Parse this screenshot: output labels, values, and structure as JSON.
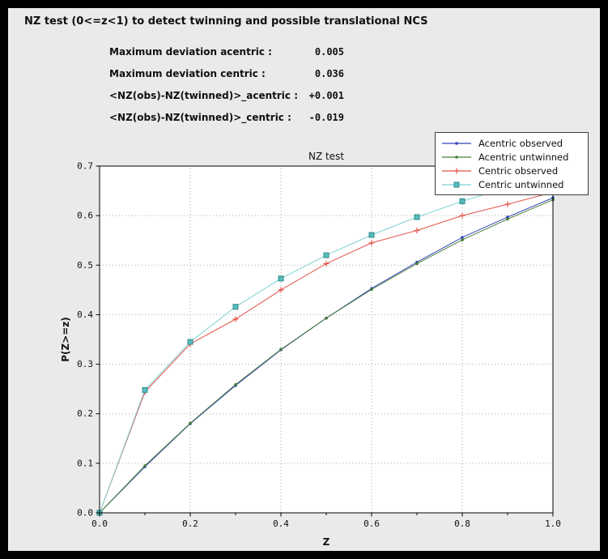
{
  "page": {
    "title": "NZ test (0<=z<1) to detect twinning and possible translational NCS",
    "frame_color": "#000000",
    "panel_color": "#eaeaea"
  },
  "stats": {
    "rows": [
      {
        "label": "Maximum deviation acentric :",
        "value": "0.005"
      },
      {
        "label": "Maximum deviation centric :",
        "value": "0.036"
      },
      {
        "label": "<NZ(obs)-NZ(twinned)>_acentric :",
        "value": "+0.001"
      },
      {
        "label": "<NZ(obs)-NZ(twinned)>_centric :",
        "value": "-0.019"
      }
    ]
  },
  "chart_data": {
    "type": "line",
    "title": "NZ test",
    "xlabel": "Z",
    "ylabel": "P(Z>=z)",
    "xlim": [
      0.0,
      1.0
    ],
    "ylim": [
      0.0,
      0.7
    ],
    "grid": true,
    "legend_position": "upper right",
    "plot_background": "#ffffff",
    "grid_color": "#a8a8a8",
    "axis_color": "#000000",
    "x_ticks": [
      "0.0",
      "0.2",
      "0.4",
      "0.6",
      "0.8",
      "1.0"
    ],
    "x_tick_values": [
      0.0,
      0.2,
      0.4,
      0.6,
      0.8,
      1.0
    ],
    "y_ticks": [
      "0.0",
      "0.1",
      "0.2",
      "0.3",
      "0.4",
      "0.5",
      "0.6",
      "0.7"
    ],
    "y_tick_values": [
      0.0,
      0.1,
      0.2,
      0.3,
      0.4,
      0.5,
      0.6,
      0.7
    ],
    "x": [
      0.0,
      0.1,
      0.2,
      0.3,
      0.4,
      0.5,
      0.6,
      0.7,
      0.8,
      0.9,
      1.0
    ],
    "series": [
      {
        "name": "Acentric observed",
        "color": "#3344bb",
        "marker": "dot",
        "values": [
          0.0,
          0.093,
          0.18,
          0.257,
          0.329,
          0.393,
          0.453,
          0.506,
          0.556,
          0.597,
          0.636
        ]
      },
      {
        "name": "Acentric untwinned",
        "color": "#4a7d3a",
        "marker": "dot",
        "values": [
          0.0,
          0.095,
          0.181,
          0.259,
          0.33,
          0.393,
          0.451,
          0.503,
          0.551,
          0.593,
          0.632
        ]
      },
      {
        "name": "Centric observed",
        "color": "#e2524a",
        "marker": "plus",
        "values": [
          0.0,
          0.244,
          0.341,
          0.391,
          0.45,
          0.503,
          0.545,
          0.57,
          0.6,
          0.623,
          0.647
        ]
      },
      {
        "name": "Centric untwinned",
        "color": "#7fd2d2",
        "marker": "square",
        "marker_fill": "#58bcbc",
        "marker_edge": "#2e8b8b",
        "values": [
          0.0,
          0.248,
          0.345,
          0.416,
          0.473,
          0.52,
          0.561,
          0.597,
          0.629,
          0.657,
          0.683
        ]
      }
    ]
  }
}
